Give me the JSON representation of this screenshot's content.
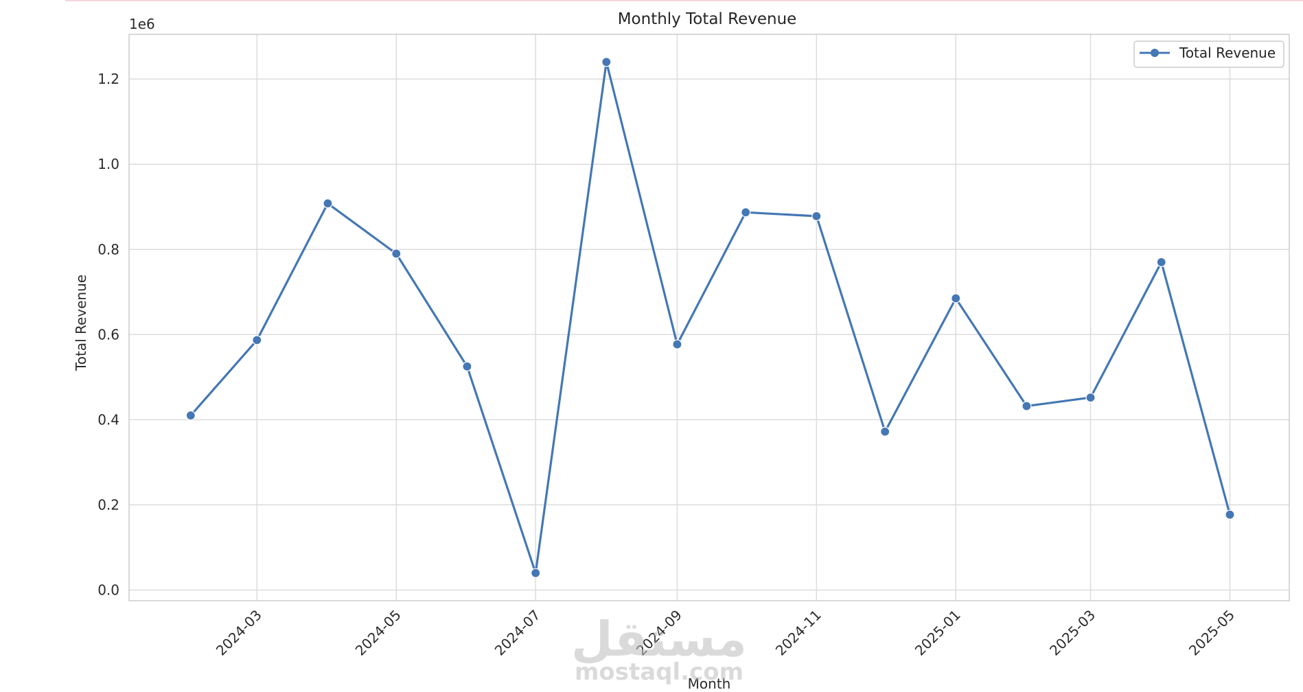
{
  "chart_data": {
    "type": "line",
    "title": "Monthly Total Revenue",
    "xlabel": "Month",
    "ylabel": "Total Revenue",
    "y_offset_text": "1e6",
    "x_axis": "date",
    "x": [
      "2024-02-01",
      "2024-03-01",
      "2024-04-01",
      "2024-05-01",
      "2024-06-01",
      "2024-07-01",
      "2024-08-01",
      "2024-09-01",
      "2024-10-01",
      "2024-11-01",
      "2024-12-01",
      "2025-01-01",
      "2025-02-01",
      "2025-03-01",
      "2025-04-01",
      "2025-05-01"
    ],
    "x_ticks": [
      "2024-03",
      "2024-05",
      "2024-07",
      "2024-09",
      "2024-11",
      "2025-01",
      "2025-03",
      "2025-05"
    ],
    "x_tick_dates": [
      "2024-03-01",
      "2024-05-01",
      "2024-07-01",
      "2024-09-01",
      "2024-11-01",
      "2025-01-01",
      "2025-03-01",
      "2025-05-01"
    ],
    "y_ticks": [
      "0.0",
      "0.2",
      "0.4",
      "0.6",
      "0.8",
      "1.0",
      "1.2"
    ],
    "y_tick_values": [
      0,
      200000,
      400000,
      600000,
      800000,
      1000000,
      1200000
    ],
    "ylim": [
      -25000,
      1305000
    ],
    "xlim": [
      "2024-01-05",
      "2025-05-27"
    ],
    "series": [
      {
        "name": "Total Revenue",
        "values": [
          410000,
          587000,
          908000,
          790000,
          525000,
          40000,
          1240000,
          577000,
          887000,
          878000,
          372000,
          685000,
          432000,
          452000,
          770000,
          177000
        ]
      }
    ],
    "grid": true,
    "legend": "top-right",
    "colors": {
      "line": "#4477b4",
      "grid": "#dcdcdc",
      "axes": "#cccccc"
    }
  },
  "watermark": {
    "arabic": "مستقل",
    "latin": "mostaql.com"
  }
}
